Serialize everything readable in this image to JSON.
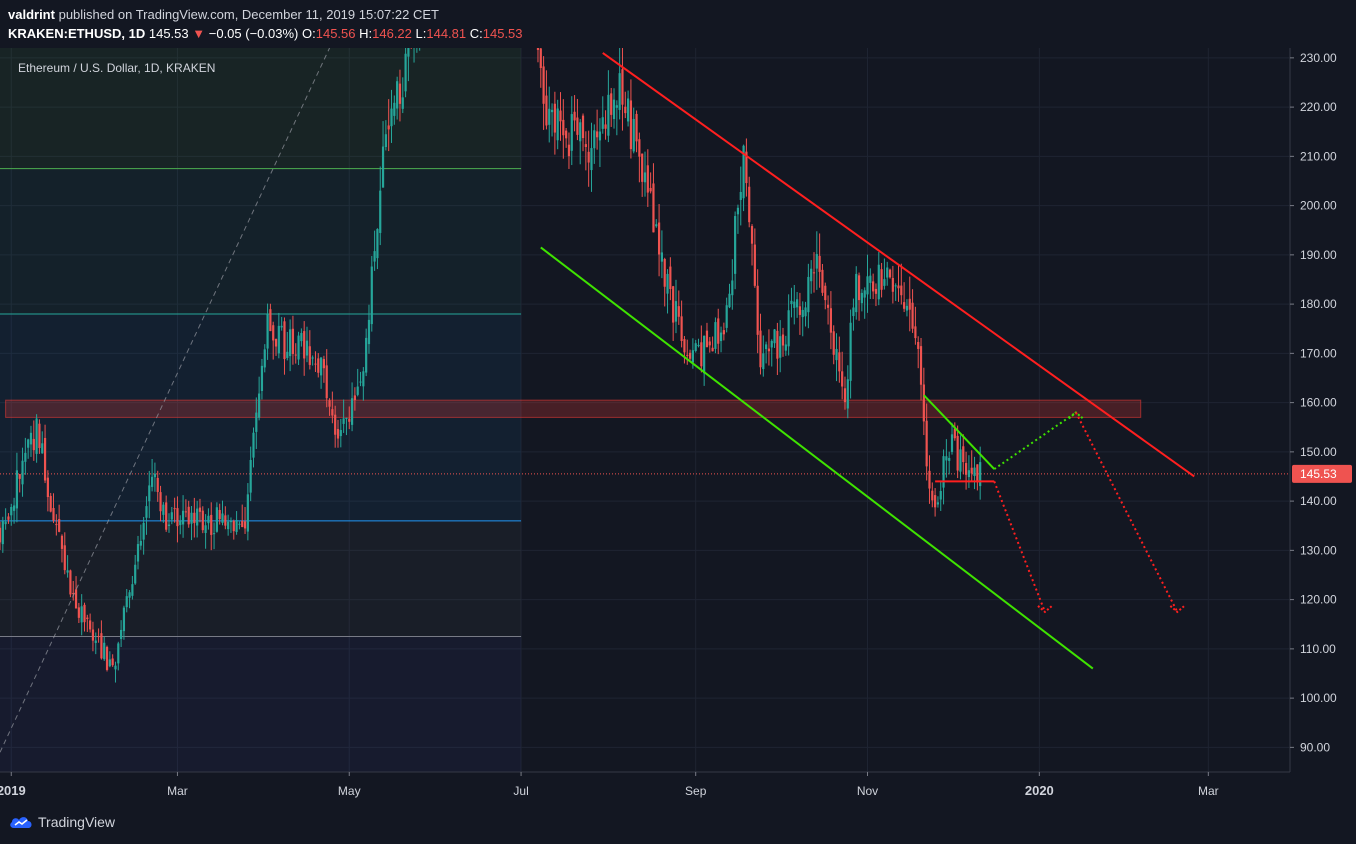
{
  "header": {
    "user": "valdrint",
    "published_text": "published on TradingView.com, December 11, 2019 15:07:22 CET",
    "symbol": "KRAKEN:ETHUSD, 1D",
    "last": "145.53",
    "change": "−0.05 (−0.03%)",
    "o_label": "O:",
    "o_value": "145.56",
    "h_label": "H:",
    "h_value": "146.22",
    "l_label": "L:",
    "l_value": "144.81",
    "c_label": "C:",
    "c_value": "145.53"
  },
  "footer": {
    "brand": "TradingView"
  },
  "chart_data": {
    "type": "candlestick",
    "title": "Ethereum / U.S. Dollar, 1D, KRAKEN",
    "ylim": [
      85,
      232
    ],
    "y_ticks": [
      90,
      100,
      110,
      120,
      130,
      140,
      150,
      160,
      170,
      180,
      190,
      200,
      210,
      220,
      230
    ],
    "x_range": [
      "2018-12-28",
      "2020-03-30"
    ],
    "x_ticks": [
      {
        "date": "2019-01-01",
        "label": "2019",
        "bold": true
      },
      {
        "date": "2019-03-01",
        "label": "Mar",
        "bold": false
      },
      {
        "date": "2019-05-01",
        "label": "May",
        "bold": false
      },
      {
        "date": "2019-07-01",
        "label": "Jul",
        "bold": false
      },
      {
        "date": "2019-09-01",
        "label": "Sep",
        "bold": false
      },
      {
        "date": "2019-11-01",
        "label": "Nov",
        "bold": false
      },
      {
        "date": "2020-01-01",
        "label": "2020",
        "bold": true
      },
      {
        "date": "2020-03-01",
        "label": "Mar",
        "bold": false
      }
    ],
    "current_price": 145.53,
    "current_price_label": "145.53",
    "colors": {
      "up": "#26a69a",
      "down": "#ef5350",
      "background": "#131722"
    },
    "key_points": [
      {
        "date": "2018-12-28",
        "close": 134
      },
      {
        "date": "2019-01-10",
        "close": 154
      },
      {
        "date": "2019-01-22",
        "close": 122
      },
      {
        "date": "2019-02-06",
        "close": 106
      },
      {
        "date": "2019-02-20",
        "close": 145
      },
      {
        "date": "2019-02-25",
        "close": 137
      },
      {
        "date": "2019-03-15",
        "close": 136
      },
      {
        "date": "2019-03-25",
        "close": 137
      },
      {
        "date": "2019-04-02",
        "close": 175
      },
      {
        "date": "2019-04-20",
        "close": 168
      },
      {
        "date": "2019-04-27",
        "close": 152
      },
      {
        "date": "2019-05-05",
        "close": 162
      },
      {
        "date": "2019-05-14",
        "close": 216
      },
      {
        "date": "2019-05-30",
        "close": 245
      },
      {
        "date": "2019-06-26",
        "close": 300
      },
      {
        "date": "2019-07-10",
        "close": 218
      },
      {
        "date": "2019-07-25",
        "close": 211
      },
      {
        "date": "2019-08-05",
        "close": 225
      },
      {
        "date": "2019-08-20",
        "close": 190
      },
      {
        "date": "2019-08-29",
        "close": 168
      },
      {
        "date": "2019-09-05",
        "close": 172
      },
      {
        "date": "2019-09-12",
        "close": 176
      },
      {
        "date": "2019-09-18",
        "close": 212
      },
      {
        "date": "2019-09-24",
        "close": 167
      },
      {
        "date": "2019-10-08",
        "close": 180
      },
      {
        "date": "2019-10-14",
        "close": 189
      },
      {
        "date": "2019-10-24",
        "close": 161
      },
      {
        "date": "2019-10-27",
        "close": 182
      },
      {
        "date": "2019-11-08",
        "close": 187
      },
      {
        "date": "2019-11-18",
        "close": 177
      },
      {
        "date": "2019-11-22",
        "close": 147
      },
      {
        "date": "2019-11-25",
        "close": 141
      },
      {
        "date": "2019-12-01",
        "close": 151
      },
      {
        "date": "2019-12-05",
        "close": 148
      },
      {
        "date": "2019-12-11",
        "close": 145.53
      }
    ],
    "horizontal_levels": [
      {
        "price": 207.5,
        "color": "#4caf50",
        "end_date": "2019-07-01"
      },
      {
        "price": 178,
        "color": "#26a69a",
        "end_date": "2019-07-01"
      },
      {
        "price": 136,
        "color": "#2196f3",
        "end_date": "2019-07-01"
      },
      {
        "price": 112.5,
        "color": "#787b86",
        "end_date": "2019-07-01"
      }
    ],
    "resistance_zone": {
      "low": 157,
      "high": 160.5,
      "start": "2018-12-30",
      "end": "2020-02-06"
    },
    "drawings": [
      {
        "kind": "channel-upper",
        "color": "#ff1f1f",
        "p1": [
          "2019-07-30",
          231
        ],
        "p2": [
          "2020-02-25",
          145
        ]
      },
      {
        "kind": "channel-lower",
        "color": "#3fe300",
        "p1": [
          "2019-07-08",
          191.5
        ],
        "p2": [
          "2020-01-20",
          106
        ]
      },
      {
        "kind": "triangle-top",
        "color": "#3fe300",
        "p1": [
          "2019-11-21",
          161.5
        ],
        "p2": [
          "2019-12-16",
          146.5
        ]
      },
      {
        "kind": "support",
        "color": "#ff1f1f",
        "p1": [
          "2019-11-25",
          144
        ],
        "p2": [
          "2019-12-16",
          144
        ]
      },
      {
        "kind": "projection-up",
        "color": "#3fe300",
        "dotted": true,
        "p1": [
          "2019-12-16",
          146.5
        ],
        "p2": [
          "2020-01-14",
          158
        ]
      },
      {
        "kind": "projection-down",
        "color": "#ff1f1f",
        "dotted": true,
        "p1": [
          "2019-12-16",
          144
        ],
        "p2": [
          "2020-01-03",
          117.5
        ]
      },
      {
        "kind": "projection-down-2",
        "color": "#ff1f1f",
        "dotted": true,
        "p1": [
          "2020-01-14",
          158
        ],
        "p2": [
          "2020-02-19",
          117.5
        ]
      },
      {
        "kind": "gann-diagonal",
        "color": "#9598a1",
        "dotted": true,
        "p1": [
          "2018-12-28",
          89
        ],
        "p2": [
          "2019-04-24",
          232
        ]
      }
    ]
  }
}
